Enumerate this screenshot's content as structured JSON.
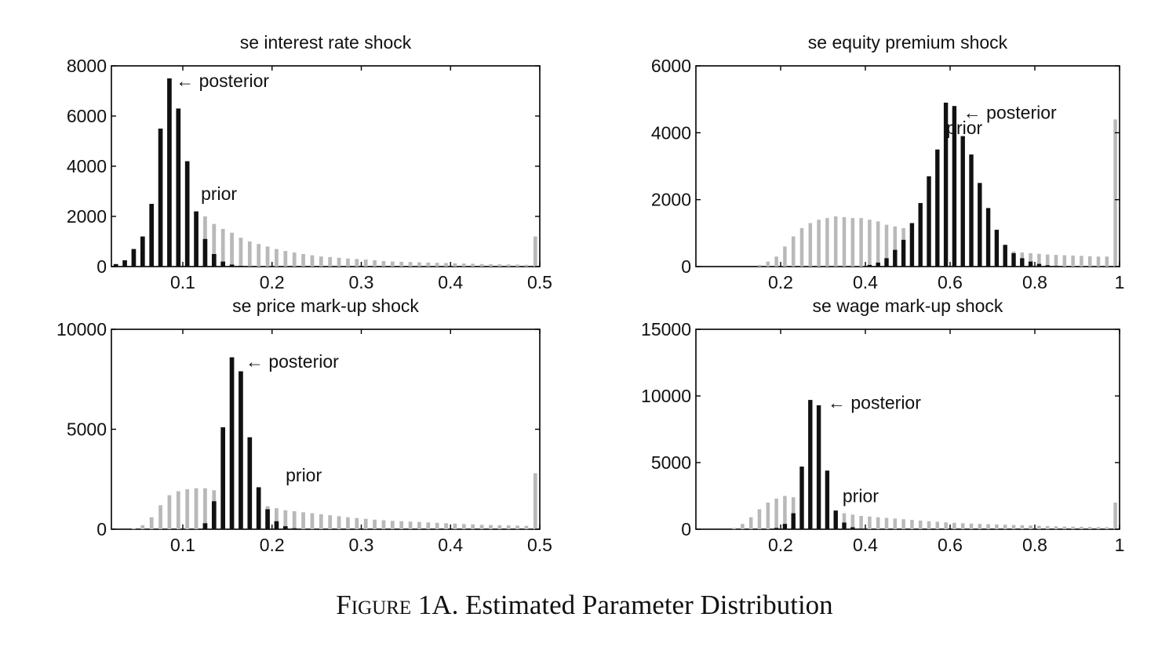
{
  "caption": {
    "label": "Figure 1A.",
    "text": "Estimated Parameter Distribution"
  },
  "colors": {
    "posterior": "#111111",
    "prior": "#b9b9b9",
    "axis": "#000000"
  },
  "chart_data": [
    {
      "type": "bar",
      "title": "se interest rate shock",
      "xlim": [
        0.02,
        0.5
      ],
      "ylim": [
        0,
        8000
      ],
      "xticks": [
        "0.1",
        "0.2",
        "0.3",
        "0.4",
        "0.5"
      ],
      "yticks": [
        "0",
        "2000",
        "4000",
        "6000",
        "8000"
      ],
      "annotations": [
        {
          "text": "← posterior",
          "x": 0.087,
          "y": 7400
        },
        {
          "text": "prior",
          "x": 0.115,
          "y": 2900
        }
      ],
      "series": [
        {
          "name": "prior",
          "x": [
            0.025,
            0.035,
            0.045,
            0.055,
            0.065,
            0.075,
            0.085,
            0.095,
            0.105,
            0.115,
            0.125,
            0.135,
            0.145,
            0.155,
            0.165,
            0.175,
            0.185,
            0.195,
            0.205,
            0.215,
            0.225,
            0.235,
            0.245,
            0.255,
            0.265,
            0.275,
            0.285,
            0.295,
            0.305,
            0.315,
            0.325,
            0.335,
            0.345,
            0.355,
            0.365,
            0.375,
            0.385,
            0.395,
            0.405,
            0.415,
            0.425,
            0.435,
            0.445,
            0.455,
            0.465,
            0.475,
            0.485,
            0.495
          ],
          "values": [
            0,
            50,
            150,
            400,
            750,
            1100,
            1500,
            1800,
            2200,
            2200,
            2000,
            1700,
            1500,
            1350,
            1150,
            1000,
            900,
            800,
            700,
            620,
            560,
            500,
            450,
            400,
            380,
            350,
            320,
            300,
            280,
            250,
            220,
            200,
            190,
            180,
            170,
            160,
            150,
            140,
            130,
            120,
            110,
            100,
            95,
            90,
            85,
            80,
            70,
            1200
          ]
        },
        {
          "name": "posterior",
          "x": [
            0.025,
            0.035,
            0.045,
            0.055,
            0.065,
            0.075,
            0.085,
            0.095,
            0.105,
            0.115,
            0.125,
            0.135,
            0.145,
            0.155,
            0.165,
            0.175,
            0.185
          ],
          "values": [
            100,
            250,
            700,
            1200,
            2500,
            5500,
            7500,
            6300,
            4200,
            2200,
            1100,
            500,
            200,
            80,
            30,
            10,
            0
          ]
        }
      ]
    },
    {
      "type": "bar",
      "title": "se equity premium shock",
      "xlim": [
        0,
        1
      ],
      "ylim": [
        0,
        6000
      ],
      "xticks": [
        "0.2",
        "0.4",
        "0.6",
        "0.8",
        "1"
      ],
      "yticks": [
        "0",
        "2000",
        "4000",
        "6000"
      ],
      "annotations": [
        {
          "text": "← posterior",
          "x": 0.62,
          "y": 4600
        },
        {
          "text": "prior",
          "x": 0.58,
          "y": 4150
        }
      ],
      "series": [
        {
          "name": "prior",
          "x": [
            0.01,
            0.03,
            0.05,
            0.07,
            0.09,
            0.11,
            0.13,
            0.15,
            0.17,
            0.19,
            0.21,
            0.23,
            0.25,
            0.27,
            0.29,
            0.31,
            0.33,
            0.35,
            0.37,
            0.39,
            0.41,
            0.43,
            0.45,
            0.47,
            0.49,
            0.51,
            0.53,
            0.55,
            0.57,
            0.59,
            0.61,
            0.63,
            0.65,
            0.67,
            0.69,
            0.71,
            0.73,
            0.75,
            0.77,
            0.79,
            0.81,
            0.83,
            0.85,
            0.87,
            0.89,
            0.91,
            0.93,
            0.95,
            0.97,
            0.99
          ],
          "values": [
            0,
            0,
            0,
            0,
            0,
            0,
            0,
            50,
            150,
            300,
            600,
            900,
            1150,
            1300,
            1400,
            1450,
            1500,
            1480,
            1450,
            1450,
            1400,
            1350,
            1250,
            1200,
            1150,
            1100,
            1000,
            950,
            900,
            850,
            800,
            750,
            700,
            650,
            600,
            550,
            500,
            450,
            420,
            400,
            380,
            360,
            350,
            340,
            330,
            320,
            310,
            300,
            300,
            4400
          ]
        },
        {
          "name": "posterior",
          "x": [
            0.41,
            0.43,
            0.45,
            0.47,
            0.49,
            0.51,
            0.53,
            0.55,
            0.57,
            0.59,
            0.61,
            0.63,
            0.65,
            0.67,
            0.69,
            0.71,
            0.73,
            0.75,
            0.77,
            0.79,
            0.81,
            0.83,
            0.85
          ],
          "values": [
            50,
            120,
            250,
            500,
            800,
            1300,
            1900,
            2700,
            3500,
            4900,
            4800,
            3900,
            3350,
            2500,
            1750,
            1100,
            650,
            400,
            250,
            150,
            80,
            40,
            20
          ]
        }
      ]
    },
    {
      "type": "bar",
      "title": "se price mark-up shock",
      "xlim": [
        0.02,
        0.5
      ],
      "ylim": [
        0,
        10000
      ],
      "xticks": [
        "0.1",
        "0.2",
        "0.3",
        "0.4",
        "0.5"
      ],
      "yticks": [
        "0",
        "5000",
        "10000"
      ],
      "annotations": [
        {
          "text": "← posterior",
          "x": 0.165,
          "y": 8400
        },
        {
          "text": "prior",
          "x": 0.21,
          "y": 2700
        }
      ],
      "series": [
        {
          "name": "prior",
          "x": [
            0.025,
            0.035,
            0.045,
            0.055,
            0.065,
            0.075,
            0.085,
            0.095,
            0.105,
            0.115,
            0.125,
            0.135,
            0.145,
            0.155,
            0.165,
            0.175,
            0.185,
            0.195,
            0.205,
            0.215,
            0.225,
            0.235,
            0.245,
            0.255,
            0.265,
            0.275,
            0.285,
            0.295,
            0.305,
            0.315,
            0.325,
            0.335,
            0.345,
            0.355,
            0.365,
            0.375,
            0.385,
            0.395,
            0.405,
            0.415,
            0.425,
            0.435,
            0.445,
            0.455,
            0.465,
            0.475,
            0.485,
            0.495
          ],
          "values": [
            0,
            0,
            50,
            200,
            600,
            1200,
            1700,
            1900,
            2000,
            2050,
            2050,
            1950,
            1800,
            1650,
            1500,
            1350,
            1250,
            1150,
            1050,
            950,
            900,
            850,
            800,
            750,
            700,
            650,
            600,
            560,
            520,
            480,
            450,
            420,
            400,
            380,
            360,
            340,
            320,
            300,
            280,
            260,
            240,
            220,
            210,
            200,
            190,
            180,
            170,
            2800
          ]
        },
        {
          "name": "posterior",
          "x": [
            0.125,
            0.135,
            0.145,
            0.155,
            0.165,
            0.175,
            0.185,
            0.195,
            0.205,
            0.215,
            0.225
          ],
          "values": [
            300,
            1400,
            5100,
            8600,
            7900,
            4600,
            2100,
            1000,
            400,
            150,
            50
          ]
        }
      ]
    },
    {
      "type": "bar",
      "title": "se wage mark-up shock",
      "xlim": [
        0,
        1
      ],
      "ylim": [
        0,
        15000
      ],
      "xticks": [
        "0.2",
        "0.4",
        "0.6",
        "0.8",
        "1"
      ],
      "yticks": [
        "0",
        "5000",
        "10000",
        "15000"
      ],
      "annotations": [
        {
          "text": "← posterior",
          "x": 0.3,
          "y": 9500
        },
        {
          "text": "prior",
          "x": 0.335,
          "y": 2500
        }
      ],
      "series": [
        {
          "name": "prior",
          "x": [
            0.01,
            0.03,
            0.05,
            0.07,
            0.09,
            0.11,
            0.13,
            0.15,
            0.17,
            0.19,
            0.21,
            0.23,
            0.25,
            0.27,
            0.29,
            0.31,
            0.33,
            0.35,
            0.37,
            0.39,
            0.41,
            0.43,
            0.45,
            0.47,
            0.49,
            0.51,
            0.53,
            0.55,
            0.57,
            0.59,
            0.61,
            0.63,
            0.65,
            0.67,
            0.69,
            0.71,
            0.73,
            0.75,
            0.77,
            0.79,
            0.81,
            0.83,
            0.85,
            0.87,
            0.89,
            0.91,
            0.93,
            0.95,
            0.97,
            0.99
          ],
          "values": [
            0,
            0,
            0,
            0,
            100,
            400,
            900,
            1500,
            2000,
            2300,
            2500,
            2400,
            2200,
            2000,
            1800,
            1600,
            1400,
            1200,
            1100,
            1000,
            950,
            900,
            850,
            800,
            750,
            700,
            650,
            600,
            560,
            520,
            480,
            450,
            420,
            400,
            380,
            360,
            340,
            320,
            300,
            280,
            260,
            240,
            220,
            200,
            190,
            180,
            170,
            160,
            150,
            2000
          ]
        },
        {
          "name": "posterior",
          "x": [
            0.19,
            0.21,
            0.23,
            0.25,
            0.27,
            0.29,
            0.31,
            0.33,
            0.35,
            0.37,
            0.39
          ],
          "values": [
            100,
            400,
            1200,
            4700,
            9700,
            9300,
            4400,
            1400,
            500,
            150,
            50
          ]
        }
      ]
    }
  ]
}
